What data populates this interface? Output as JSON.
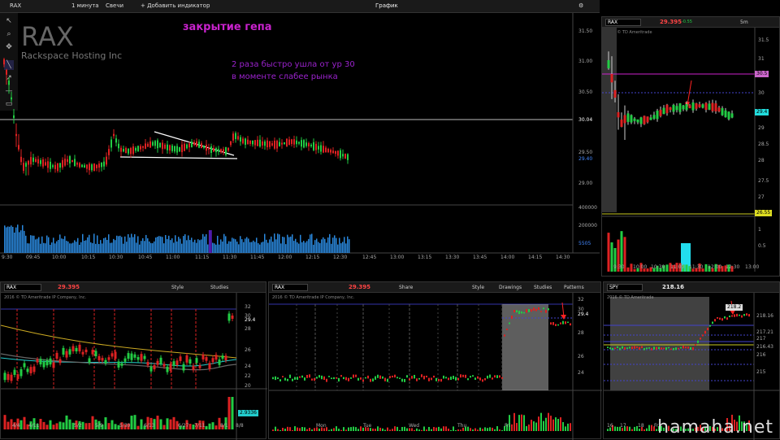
{
  "window": {
    "symbol": "RAX",
    "interval": "1 минута",
    "chart_type": "Свечи",
    "add_indicator": "+ Добавить индикатор",
    "title": "График"
  },
  "main": {
    "ticker": "RAX",
    "company": "Rackspace Hosting Inc",
    "note_title": "закрытие гепа",
    "note_line1": "2 раза быстро ушла от ур 30",
    "note_line2": "в моменте слабее рынка",
    "y_labels": [
      "31.50",
      "31.00",
      "30.50",
      "30.04",
      "29.50",
      "29.40",
      "29.00",
      "400000",
      "200000",
      "5505"
    ],
    "x_labels": [
      "9:30",
      "09:45",
      "10:00",
      "10:15",
      "10:30",
      "10:45",
      "11:00",
      "11:15",
      "11:30",
      "11:45",
      "12:00",
      "12:15",
      "12:30",
      "12:45",
      "13:00",
      "13:15",
      "13:30",
      "13:45",
      "14:00",
      "14:15",
      "14:30"
    ]
  },
  "right_top": {
    "symbol": "RAX",
    "price": "29.395",
    "change": "-0.55",
    "copyright": "2016 © TD Ameritrade",
    "period": "5m",
    "y_labels": [
      "31.5",
      "31",
      "30.5",
      "30",
      "29.4",
      "29",
      "28.5",
      "28",
      "27.5",
      "27",
      "26.55",
      "1",
      "0.5"
    ],
    "tags": {
      "upper": "30.5",
      "current": "29.4",
      "lower": "26.55"
    },
    "x_labels": [
      "9:30",
      "10:00",
      "10:30",
      "11:00",
      "11:30",
      "12:00",
      "12:30",
      "13:00"
    ],
    "vol_label": "millions"
  },
  "bottom_left": {
    "symbol": "RAX",
    "price": "29.395",
    "style_label": "Style",
    "studies_label": "Studies",
    "copyright": "2016 © TD Ameritrade IP Company, Inc.",
    "y_labels": [
      "32",
      "30",
      "29.4",
      "28",
      "26",
      "24",
      "22",
      "20",
      "3",
      "2",
      "1"
    ],
    "x_labels": [
      "4/4",
      "4/11",
      "5/2",
      "5/9",
      "5/30",
      "6/13",
      "6/27",
      "7/11",
      "8/1",
      "8/8"
    ],
    "vol_tag": "2.9336",
    "vol_label": "millions"
  },
  "bottom_mid": {
    "symbol": "RAX",
    "price": "29.395",
    "share_label": "Share",
    "style_label": "Style",
    "drawings_label": "Drawings",
    "studies_label": "Studies",
    "patterns_label": "Patterns",
    "copyright": "2016 © TD Ameritrade IP Company, Inc.",
    "y_labels": [
      "32",
      "30",
      "29.4",
      "28",
      "26",
      "24"
    ],
    "x_labels": [
      "Mon",
      "Tue",
      "Wed",
      "Thu",
      "Fri"
    ]
  },
  "bottom_right": {
    "symbol": "SPY",
    "price": "218.16",
    "copyright": "2016 © TD Ameritrade",
    "current_tag": "218.2",
    "y_labels": [
      "218.16",
      "217.21",
      "217",
      "216.43",
      "216",
      "215"
    ],
    "x_labels": [
      "16",
      "17",
      "18",
      "Fri"
    ],
    "vol_label": "millions"
  },
  "watermark": "hamaha.net",
  "colors": {
    "up": "#22cc44",
    "down": "#dd2222",
    "magenta": "#cc22cc",
    "purple": "#8822cc"
  }
}
